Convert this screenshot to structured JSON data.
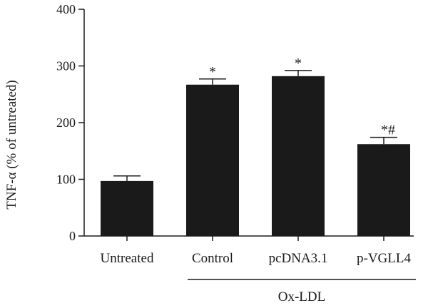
{
  "chart_data": {
    "type": "bar",
    "categories": [
      "Untreated",
      "Control",
      "pcDNA3.1",
      "p-VGLL4"
    ],
    "values": [
      97,
      267,
      282,
      162
    ],
    "errors": [
      9,
      10,
      10,
      12
    ],
    "annotations": [
      "",
      "*",
      "*",
      "*#"
    ],
    "ylabel": "TNF-α (% of untreated)",
    "xlabel": "",
    "ylim": [
      0,
      400
    ],
    "yticks": [
      0,
      100,
      200,
      300,
      400
    ],
    "group_label": "Ox-LDL",
    "grid": false,
    "bar_color": "#1a1a1a"
  }
}
